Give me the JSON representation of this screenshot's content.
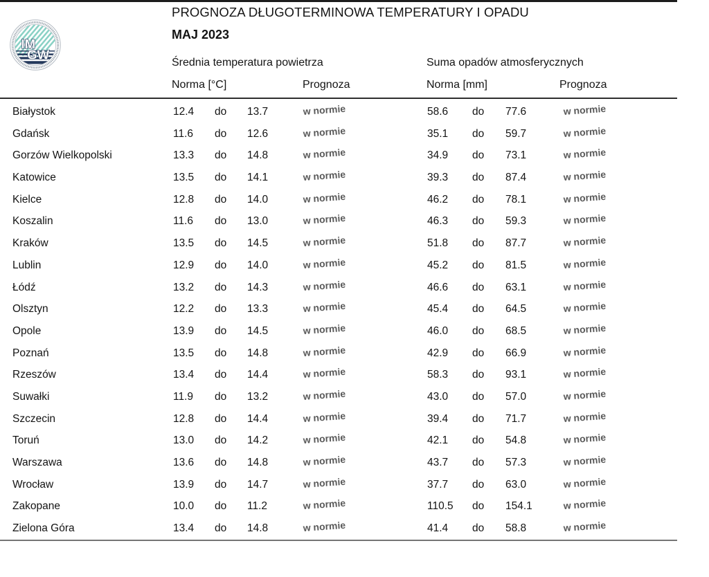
{
  "header": {
    "title": "PROGNOZA DŁUGOTERMINOWA TEMPERATURY I OPADU",
    "subtitle": "MAJ 2023",
    "temp_group": "Średnia temperatura powietrza",
    "precip_group": "Suma opadów atmosferycznych",
    "temp_norm_label": "Norma [°C]",
    "temp_forecast_label": "Prognoza",
    "precip_norm_label": "Norma [mm]",
    "precip_forecast_label": "Prognoza"
  },
  "logo": {
    "initials_top": "IM",
    "initials_bottom": "GW"
  },
  "range_word": "do",
  "rows": [
    {
      "city": "Białystok",
      "t_min": "12.4",
      "t_max": "13.7",
      "t_forecast": "w normie",
      "p_min": "58.6",
      "p_max": "77.6",
      "p_forecast": "w normie"
    },
    {
      "city": "Gdańsk",
      "t_min": "11.6",
      "t_max": "12.6",
      "t_forecast": "w normie",
      "p_min": "35.1",
      "p_max": "59.7",
      "p_forecast": "w normie"
    },
    {
      "city": "Gorzów Wielkopolski",
      "t_min": "13.3",
      "t_max": "14.8",
      "t_forecast": "w normie",
      "p_min": "34.9",
      "p_max": "73.1",
      "p_forecast": "w normie"
    },
    {
      "city": "Katowice",
      "t_min": "13.5",
      "t_max": "14.1",
      "t_forecast": "w normie",
      "p_min": "39.3",
      "p_max": "87.4",
      "p_forecast": "w normie"
    },
    {
      "city": "Kielce",
      "t_min": "12.8",
      "t_max": "14.0",
      "t_forecast": "w normie",
      "p_min": "46.2",
      "p_max": "78.1",
      "p_forecast": "w normie"
    },
    {
      "city": "Koszalin",
      "t_min": "11.6",
      "t_max": "13.0",
      "t_forecast": "w normie",
      "p_min": "46.3",
      "p_max": "59.3",
      "p_forecast": "w normie"
    },
    {
      "city": "Kraków",
      "t_min": "13.5",
      "t_max": "14.5",
      "t_forecast": "w normie",
      "p_min": "51.8",
      "p_max": "87.7",
      "p_forecast": "w normie"
    },
    {
      "city": "Lublin",
      "t_min": "12.9",
      "t_max": "14.0",
      "t_forecast": "w normie",
      "p_min": "45.2",
      "p_max": "81.5",
      "p_forecast": "w normie"
    },
    {
      "city": "Łódź",
      "t_min": "13.2",
      "t_max": "14.3",
      "t_forecast": "w normie",
      "p_min": "46.6",
      "p_max": "63.1",
      "p_forecast": "w normie"
    },
    {
      "city": "Olsztyn",
      "t_min": "12.2",
      "t_max": "13.3",
      "t_forecast": "w normie",
      "p_min": "45.4",
      "p_max": "64.5",
      "p_forecast": "w normie"
    },
    {
      "city": "Opole",
      "t_min": "13.9",
      "t_max": "14.5",
      "t_forecast": "w normie",
      "p_min": "46.0",
      "p_max": "68.5",
      "p_forecast": "w normie"
    },
    {
      "city": "Poznań",
      "t_min": "13.5",
      "t_max": "14.8",
      "t_forecast": "w normie",
      "p_min": "42.9",
      "p_max": "66.9",
      "p_forecast": "w normie"
    },
    {
      "city": "Rzeszów",
      "t_min": "13.4",
      "t_max": "14.4",
      "t_forecast": "w normie",
      "p_min": "58.3",
      "p_max": "93.1",
      "p_forecast": "w normie"
    },
    {
      "city": "Suwałki",
      "t_min": "11.9",
      "t_max": "13.2",
      "t_forecast": "w normie",
      "p_min": "43.0",
      "p_max": "57.0",
      "p_forecast": "w normie"
    },
    {
      "city": "Szczecin",
      "t_min": "12.8",
      "t_max": "14.4",
      "t_forecast": "w normie",
      "p_min": "39.4",
      "p_max": "71.7",
      "p_forecast": "w normie"
    },
    {
      "city": "Toruń",
      "t_min": "13.0",
      "t_max": "14.2",
      "t_forecast": "w normie",
      "p_min": "42.1",
      "p_max": "54.8",
      "p_forecast": "w normie"
    },
    {
      "city": "Warszawa",
      "t_min": "13.6",
      "t_max": "14.8",
      "t_forecast": "w normie",
      "p_min": "43.7",
      "p_max": "57.3",
      "p_forecast": "w normie"
    },
    {
      "city": "Wrocław",
      "t_min": "13.9",
      "t_max": "14.7",
      "t_forecast": "w normie",
      "p_min": "37.7",
      "p_max": "63.0",
      "p_forecast": "w normie"
    },
    {
      "city": "Zakopane",
      "t_min": "10.0",
      "t_max": "11.2",
      "t_forecast": "w normie",
      "p_min": "110.5",
      "p_max": "154.1",
      "p_forecast": "w normie"
    },
    {
      "city": "Zielona Góra",
      "t_min": "13.4",
      "t_max": "14.8",
      "t_forecast": "w normie",
      "p_min": "41.4",
      "p_max": "58.8",
      "p_forecast": "w normie"
    }
  ],
  "colors": {
    "forecast_text": "#595959",
    "logo_teal": "#8ad1c5",
    "logo_navy": "#24395c",
    "rule_dark": "#1c1c1c",
    "rule_gray": "#757575"
  }
}
